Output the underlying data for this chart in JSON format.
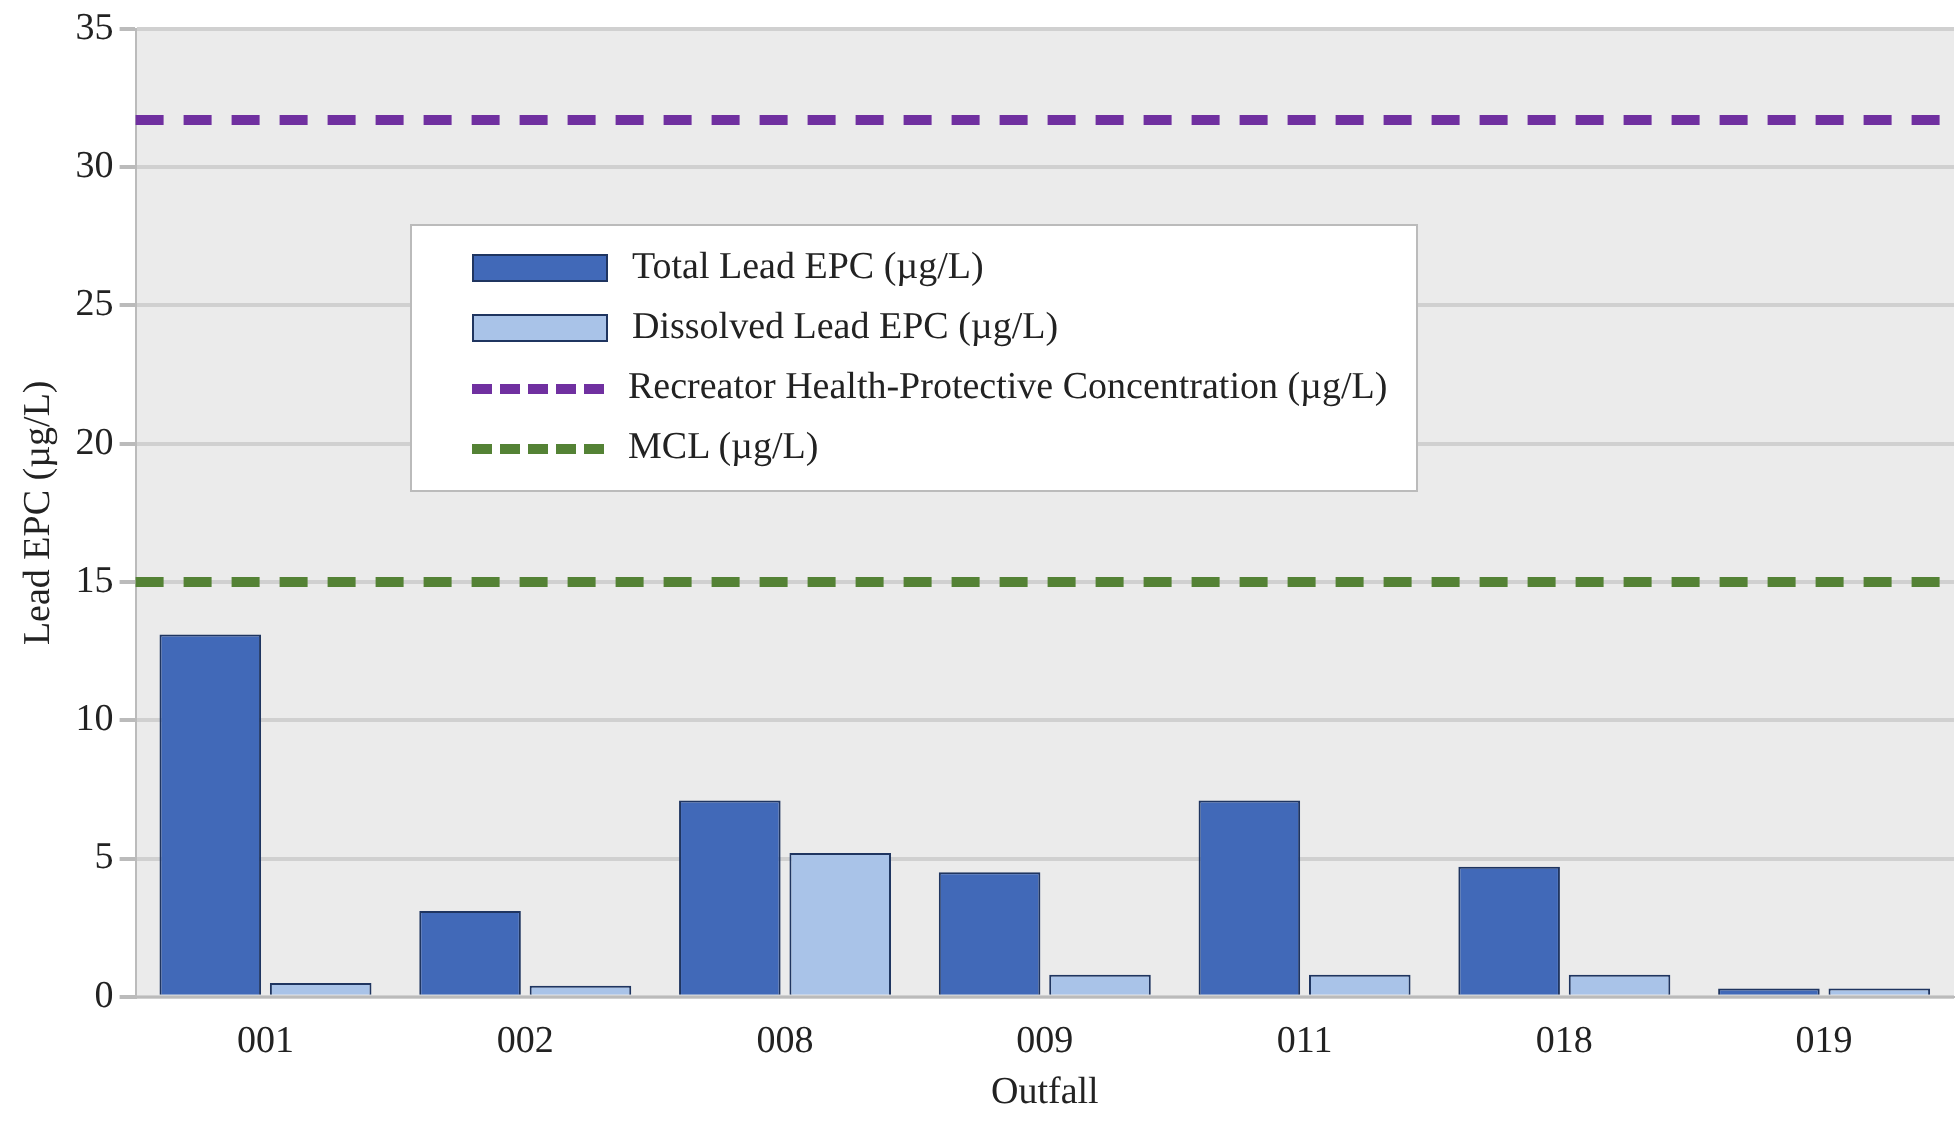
{
  "chart_data": {
    "type": "bar",
    "xlabel": "Outfall",
    "ylabel": "Lead EPC (µg/L)",
    "categories": [
      "001",
      "002",
      "008",
      "009",
      "011",
      "018",
      "019"
    ],
    "series": [
      {
        "name": "Total Lead EPC (µg/L)",
        "color": "#4169b8",
        "values": [
          13.1,
          3.1,
          7.1,
          4.5,
          7.1,
          4.7,
          0.3
        ]
      },
      {
        "name": "Dissolved Lead EPC (µg/L)",
        "color": "#a9c3e8",
        "values": [
          0.5,
          0.4,
          5.2,
          0.8,
          0.8,
          0.8,
          0.3
        ]
      }
    ],
    "ref_lines": [
      {
        "axis": "y",
        "value": 31.7,
        "label": "Recreator Health-Protective Concentration (µg/L)",
        "color": "#7030a0",
        "line_style": "dashed"
      },
      {
        "axis": "y",
        "value": 15,
        "label": "MCL (µg/L)",
        "color": "#548235",
        "line_style": "dashed"
      }
    ],
    "ylim": [
      0,
      35
    ],
    "yticks": [
      0,
      5,
      10,
      15,
      20,
      25,
      30,
      35
    ],
    "grid": "y",
    "legend": "top"
  }
}
